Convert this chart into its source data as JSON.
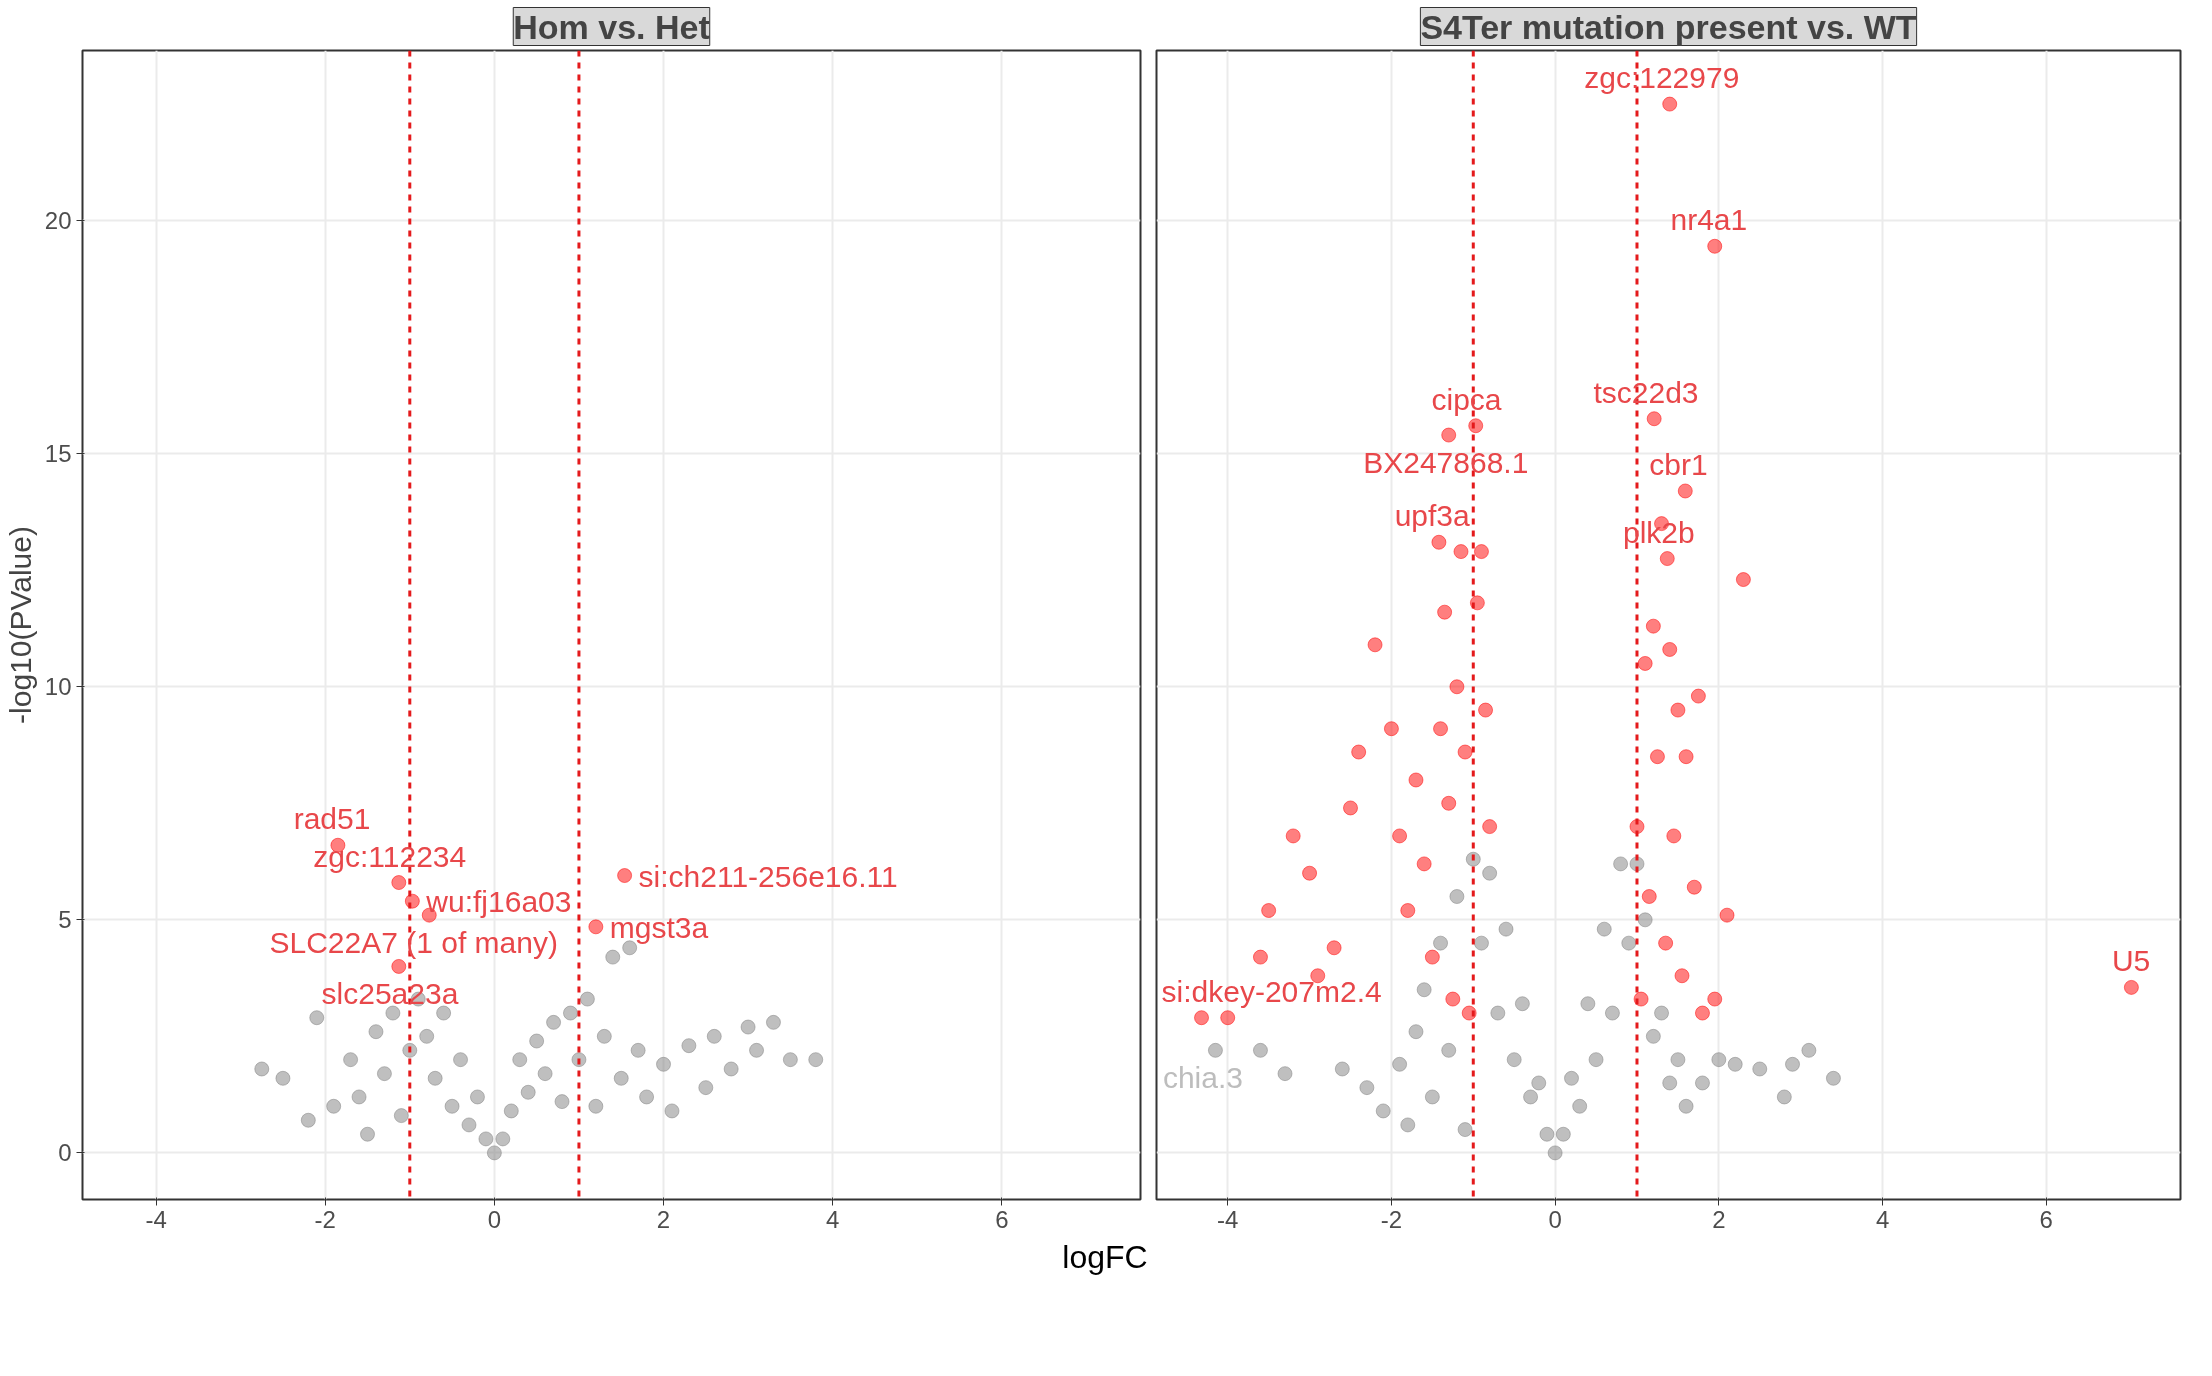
{
  "chart_data": [
    {
      "type": "scatter",
      "title": "Hom vs. Het",
      "xlabel": "logFC",
      "ylabel": "-log10(PValue)",
      "xlim": [
        -4.87,
        7.64
      ],
      "ylim": [
        -1.0,
        23.65
      ],
      "xticks": [
        -4,
        -2,
        0,
        2,
        4,
        6
      ],
      "yticks": [
        0,
        5,
        10,
        15,
        20
      ],
      "grid": true,
      "marker": "circle",
      "ref_lines": [
        {
          "axis": "x",
          "value": -1,
          "color": "#e41a1c",
          "line_style": "dashed"
        },
        {
          "axis": "x",
          "value": 1,
          "color": "#e41a1c",
          "line_style": "dashed"
        }
      ],
      "series": [
        {
          "color": "#7f7f7f",
          "x": [
            -2.75,
            -2.5,
            -2.2,
            -2.1,
            -1.9,
            -1.7,
            -1.6,
            -1.5,
            -1.4,
            -1.3,
            -1.2,
            -1.1,
            -1.0,
            -0.9,
            -0.8,
            -0.7,
            -0.6,
            -0.5,
            -0.4,
            -0.3,
            -0.2,
            -0.1,
            0,
            0.1,
            0.2,
            0.3,
            0.4,
            0.5,
            0.6,
            0.7,
            0.8,
            0.9,
            1.0,
            1.1,
            1.2,
            1.3,
            1.4,
            1.5,
            1.6,
            1.7,
            1.8,
            2.0,
            2.1,
            2.3,
            2.5,
            2.6,
            2.8,
            3.0,
            3.1,
            3.3,
            3.5,
            3.8
          ],
          "values": [
            1.8,
            1.6,
            0.7,
            2.9,
            1.0,
            2.0,
            1.2,
            0.4,
            2.6,
            1.7,
            3.0,
            0.8,
            2.2,
            3.3,
            2.5,
            1.6,
            3.0,
            1.0,
            2.0,
            0.6,
            1.2,
            0.3,
            0,
            0.3,
            0.9,
            2.0,
            1.3,
            2.4,
            1.7,
            2.8,
            1.1,
            3.0,
            2.0,
            3.3,
            1.0,
            2.5,
            4.2,
            1.6,
            4.4,
            2.2,
            1.2,
            1.9,
            0.9,
            2.3,
            1.4,
            2.5,
            1.8,
            2.7,
            2.2,
            2.8,
            2.0,
            2.0
          ]
        },
        {
          "color": "#ff0000",
          "x": [
            -1.85,
            -1.13,
            -0.77,
            -0.97,
            -1.13,
            1.54,
            1.2
          ],
          "values": [
            6.6,
            5.8,
            5.1,
            5.4,
            4.0,
            5.95,
            4.85
          ]
        }
      ],
      "annotations": [
        {
          "text": "rad51",
          "x": -1.85,
          "y": 6.6
        },
        {
          "text": "zgc:112234",
          "x": -1.13,
          "y": 5.8
        },
        {
          "text": "SLC22A7 (1 of many)",
          "x": -0.77,
          "y": 5.1
        },
        {
          "text": "wu:fj16a03",
          "x": -0.97,
          "y": 5.4
        },
        {
          "text": "slc25a23a",
          "x": -1.13,
          "y": 4.0
        },
        {
          "text": "si:ch211-256e16.11",
          "x": 1.54,
          "y": 5.95
        },
        {
          "text": "mgst3a",
          "x": 1.2,
          "y": 4.85
        }
      ]
    },
    {
      "type": "scatter",
      "title": "S4Ter mutation present vs. WT",
      "xlim": [
        -4.87,
        7.64
      ],
      "ylim": [
        -1.0,
        23.65
      ],
      "xticks": [
        -4,
        -2,
        0,
        2,
        4,
        6
      ],
      "yticks": [
        0,
        5,
        10,
        15,
        20
      ],
      "tick_labels": "x",
      "grid": true,
      "marker": "circle",
      "ref_lines": [
        {
          "axis": "x",
          "value": -1,
          "color": "#e41a1c",
          "line_style": "dashed"
        },
        {
          "axis": "x",
          "value": 1,
          "color": "#e41a1c",
          "line_style": "dashed"
        }
      ],
      "series": [
        {
          "color": "#7f7f7f",
          "x": [
            -4.15,
            -3.6,
            -3.3,
            -2.6,
            -2.3,
            -2.1,
            -1.9,
            -1.8,
            -1.7,
            -1.6,
            -1.5,
            -1.4,
            -1.3,
            -1.2,
            -1.1,
            -1.0,
            -0.9,
            -0.8,
            -0.7,
            -0.6,
            -0.5,
            -0.4,
            -0.3,
            -0.2,
            -0.1,
            0,
            0.1,
            0.2,
            0.3,
            0.4,
            0.5,
            0.6,
            0.7,
            0.8,
            0.9,
            1.0,
            1.1,
            1.2,
            1.3,
            1.4,
            1.5,
            1.6,
            1.8,
            2.0,
            2.2,
            2.5,
            2.8,
            2.9,
            3.1,
            3.4
          ],
          "values": [
            2.2,
            2.2,
            1.7,
            1.8,
            1.4,
            0.9,
            1.9,
            0.6,
            2.6,
            3.5,
            1.2,
            4.5,
            2.2,
            5.5,
            0.5,
            6.3,
            4.5,
            6.0,
            3.0,
            4.8,
            2.0,
            3.2,
            1.2,
            1.5,
            0.4,
            0,
            0.4,
            1.6,
            1.0,
            3.2,
            2.0,
            4.8,
            3.0,
            6.2,
            4.5,
            6.2,
            5.0,
            2.5,
            3.0,
            1.5,
            2.0,
            1.0,
            1.5,
            2.0,
            1.9,
            1.8,
            1.2,
            1.9,
            2.2,
            1.6
          ]
        },
        {
          "color": "#ff0000",
          "x": [
            1.4,
            1.95,
            1.21,
            -0.97,
            -1.3,
            1.59,
            -1.42,
            1.37,
            -4.32,
            7.04,
            -4.0,
            -3.6,
            -3.5,
            -3.2,
            -3.0,
            -2.9,
            -2.7,
            -2.5,
            -2.4,
            -2.2,
            -2.0,
            -1.9,
            -1.8,
            -1.7,
            -1.6,
            -1.5,
            -1.4,
            -1.35,
            -1.3,
            -1.25,
            -1.2,
            -1.15,
            -1.1,
            -1.05,
            -0.95,
            -0.9,
            -0.85,
            -0.8,
            1.0,
            1.05,
            1.1,
            1.15,
            1.2,
            1.25,
            1.3,
            1.35,
            1.4,
            1.45,
            1.5,
            1.55,
            1.6,
            1.7,
            1.75,
            1.8,
            1.95,
            2.1,
            2.3
          ],
          "values": [
            22.5,
            19.45,
            15.75,
            15.6,
            15.4,
            14.2,
            13.1,
            12.75,
            2.9,
            3.55,
            2.9,
            4.2,
            5.2,
            6.8,
            6.0,
            3.8,
            4.4,
            7.4,
            8.6,
            10.9,
            9.1,
            6.8,
            5.2,
            8.0,
            6.2,
            4.2,
            9.1,
            11.6,
            7.5,
            3.3,
            10.0,
            12.9,
            8.6,
            3.0,
            11.8,
            12.9,
            9.5,
            7.0,
            7.0,
            3.3,
            10.5,
            5.5,
            11.3,
            8.5,
            13.5,
            4.5,
            10.8,
            6.8,
            9.5,
            3.8,
            8.5,
            5.7,
            9.8,
            3.0,
            3.3,
            5.1,
            12.3
          ]
        }
      ],
      "annotations": [
        {
          "text": "zgc:122979",
          "x": 1.4,
          "y": 22.5
        },
        {
          "text": "nr4a1",
          "x": 1.95,
          "y": 19.45
        },
        {
          "text": "tsc22d3",
          "x": 1.21,
          "y": 15.75
        },
        {
          "text": "cipca",
          "x": -0.97,
          "y": 15.6
        },
        {
          "text": "BX247868.1",
          "x": -1.3,
          "y": 15.4
        },
        {
          "text": "cbr1",
          "x": 1.59,
          "y": 14.2
        },
        {
          "text": "upf3a",
          "x": -1.42,
          "y": 13.1
        },
        {
          "text": "plk2b",
          "x": 1.37,
          "y": 12.75
        },
        {
          "text": "si:dkey-207m2.4",
          "x": -4.32,
          "y": 2.9
        },
        {
          "text": "U5",
          "x": 7.04,
          "y": 3.55
        },
        {
          "text": "chia.3",
          "x": -4.15,
          "y": 2.2
        }
      ]
    }
  ]
}
